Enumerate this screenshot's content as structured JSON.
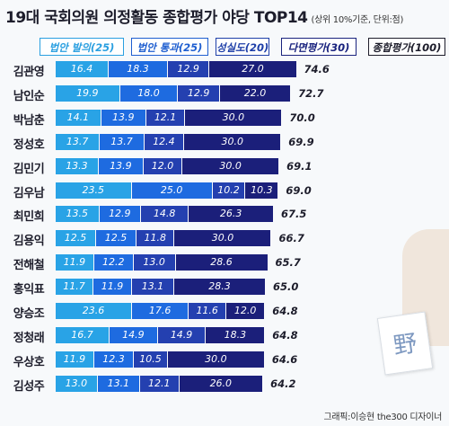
{
  "header": {
    "title": "19대 국회의원 의정활동 종합평가 야당 TOP14",
    "unit": "(상위 10%기준, 단위:점)"
  },
  "credit": "그래픽:이승현 the300 디자이너",
  "ballot_char": "野",
  "legend": [
    {
      "label": "법안 발의(25)",
      "bg": "#ffffff",
      "fg": "#2a9fe0",
      "border": "#2a9fe0"
    },
    {
      "label": "법안 통과(25)",
      "bg": "#ffffff",
      "fg": "#1f5fd0",
      "border": "#1f5fd0"
    },
    {
      "label": "성실도(20)",
      "bg": "#ffffff",
      "fg": "#1e3fa8",
      "border": "#1e3fa8"
    },
    {
      "label": "다면평가(30)",
      "bg": "#ffffff",
      "fg": "#1a237e",
      "border": "#1a237e"
    },
    {
      "label": "종합평가(100)",
      "bg": "#ffffff",
      "fg": "#1d1d2b",
      "border": "#1d1d2b"
    }
  ],
  "colors": {
    "series": [
      "#29a3e6",
      "#1e6be0",
      "#2440b0",
      "#1b1f7a"
    ],
    "outline": "#1d1d2b"
  },
  "chart_data": {
    "type": "bar",
    "stacked": true,
    "orientation": "horizontal",
    "title": "19대 국회의원 의정활동 종합평가 야당 TOP14",
    "categories": [
      "김관영",
      "남인순",
      "박남춘",
      "정성호",
      "김민기",
      "김우남",
      "최민희",
      "김용익",
      "전해철",
      "홍익표",
      "양승조",
      "정청래",
      "우상호",
      "김성주"
    ],
    "series": [
      {
        "name": "법안 발의(25)",
        "values": [
          16.4,
          19.9,
          14.1,
          13.7,
          13.3,
          23.5,
          13.5,
          12.5,
          11.9,
          11.7,
          23.6,
          16.7,
          11.9,
          13.0
        ]
      },
      {
        "name": "법안 통과(25)",
        "values": [
          18.3,
          18.0,
          13.9,
          13.7,
          13.9,
          25.0,
          12.9,
          12.5,
          12.2,
          11.9,
          17.6,
          14.9,
          12.3,
          13.1
        ]
      },
      {
        "name": "성실도(20)",
        "values": [
          12.9,
          12.9,
          12.1,
          12.4,
          12.0,
          10.2,
          14.8,
          11.8,
          13.0,
          13.1,
          11.6,
          14.9,
          10.5,
          12.1
        ]
      },
      {
        "name": "다면평가(30)",
        "values": [
          27.0,
          22.0,
          30.0,
          30.0,
          30.0,
          10.3,
          26.3,
          30.0,
          28.6,
          28.3,
          12.0,
          18.3,
          30.0,
          26.0
        ]
      }
    ],
    "totals_label": "종합평가(100)",
    "totals": [
      74.6,
      72.7,
      70.0,
      69.9,
      69.1,
      69.0,
      67.5,
      66.7,
      65.7,
      65.0,
      64.8,
      64.8,
      64.6,
      64.2
    ]
  }
}
